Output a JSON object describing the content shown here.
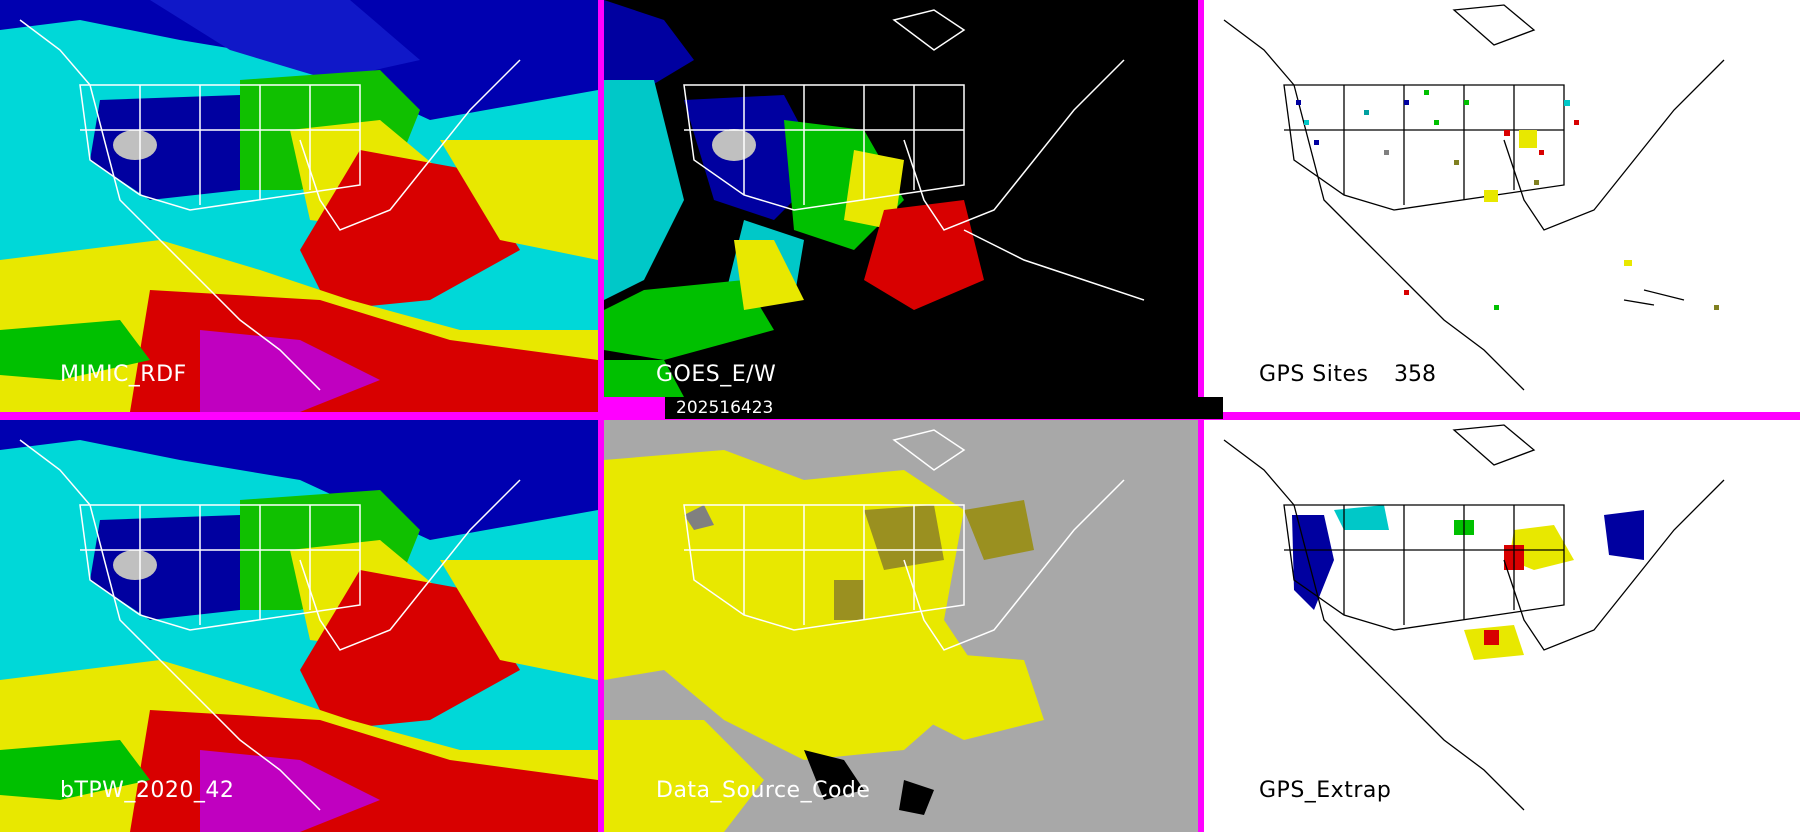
{
  "panels": {
    "p1": {
      "label": "MIMIC_RDF"
    },
    "p2": {
      "label": "GOES_E/W"
    },
    "p3": {
      "label": "GPS Sites",
      "count": "358"
    },
    "p4": {
      "label": "bTPW_2020_42"
    },
    "p5": {
      "label": "Data_Source_Code"
    },
    "p6": {
      "label": "GPS_Extrap"
    }
  },
  "timestamp": "202516423",
  "colors": {
    "divider": "#ff00ff",
    "cyan": "#00e0e0",
    "blue": "#0000a0",
    "green": "#00c000",
    "yellow": "#f0f000",
    "red": "#e00000",
    "magenta": "#ff00ff",
    "gray": "#a8a8a8",
    "olive": "#9a9020",
    "black": "#000000",
    "white": "#ffffff"
  }
}
